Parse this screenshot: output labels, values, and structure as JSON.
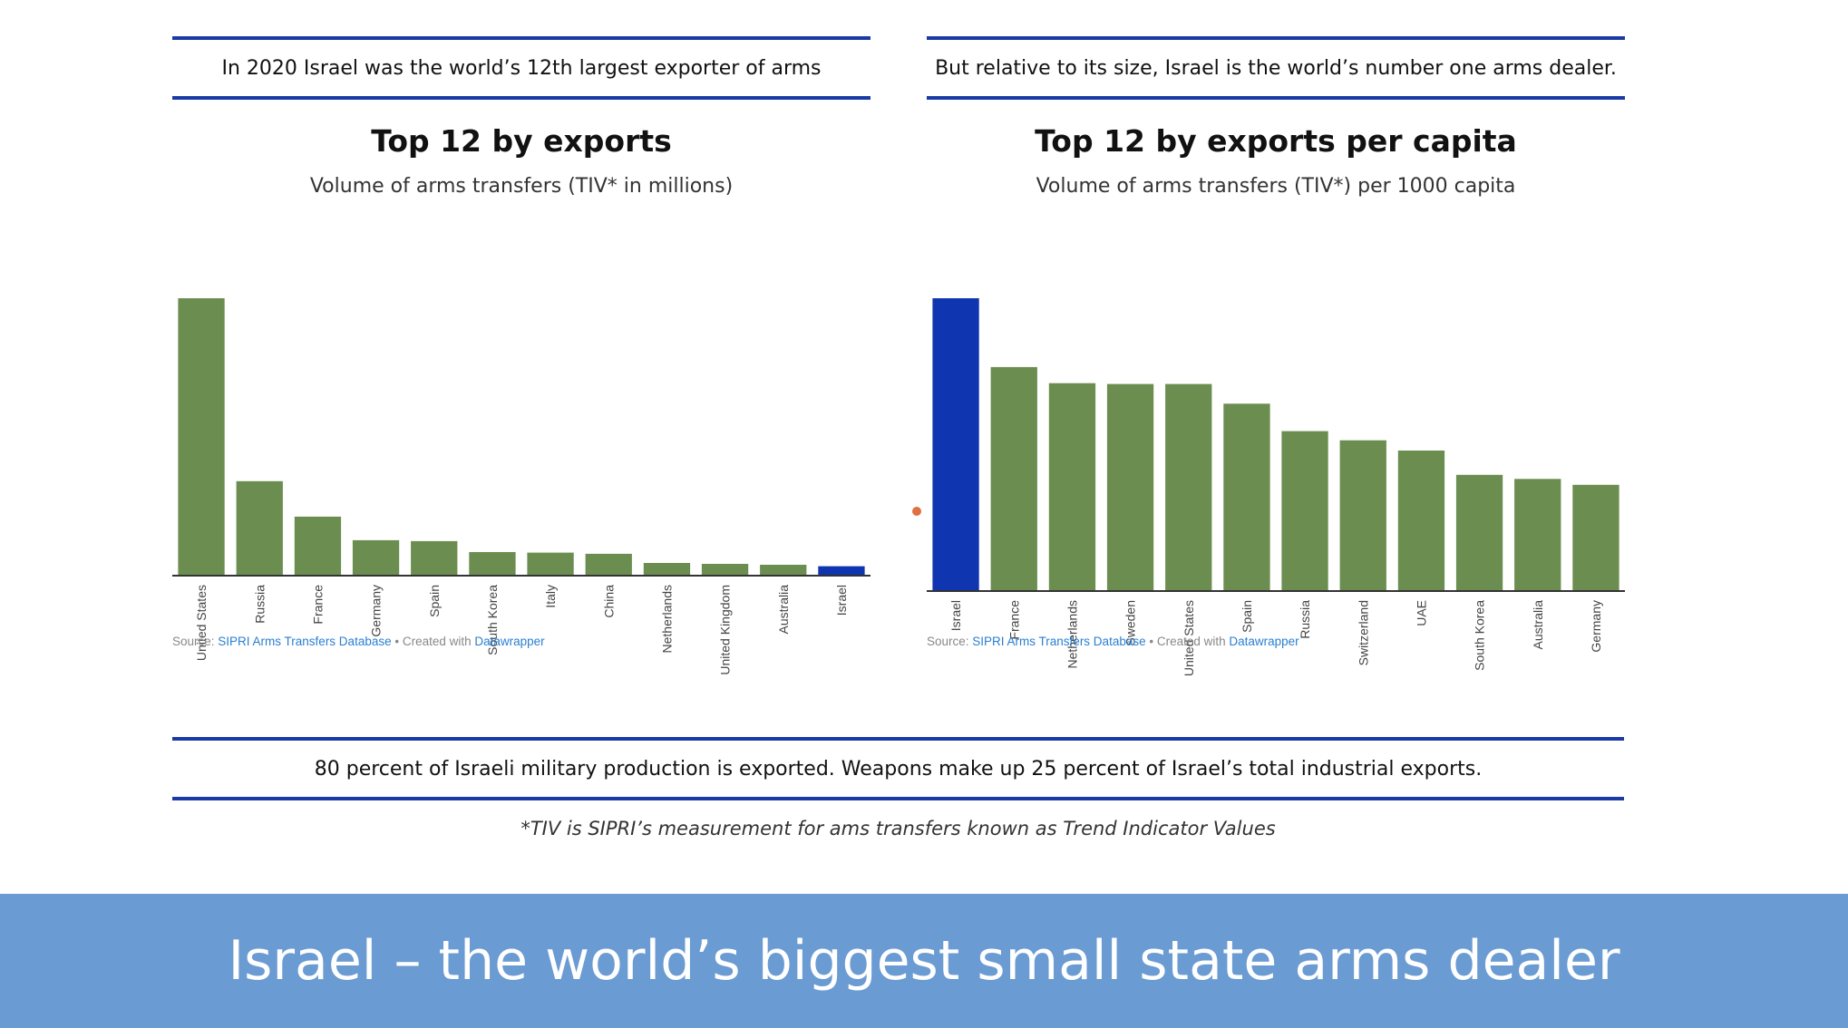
{
  "colors": {
    "accent_line": "#1a3aa6",
    "bar_green": "#6b8e50",
    "bar_highlight": "#1035b0",
    "banner_bg": "#6a9bd2",
    "link": "#2a7fd1"
  },
  "left_panel": {
    "headline": "In 2020 Israel was the world’s 12th largest exporter of arms",
    "source": {
      "prefix": "Source: ",
      "link1": "SIPRI Arms Transfers Database",
      "middle": " • Created with ",
      "link2": "Datawrapper"
    }
  },
  "right_panel": {
    "headline": "But relative to its size, Israel is the world’s number one arms dealer.",
    "source": {
      "prefix": "Source: ",
      "link1": "SIPRI Arms Transfers Database",
      "middle": " • Created with ",
      "link2": "Datawrapper"
    }
  },
  "chart_data": [
    {
      "type": "bar",
      "title": "Top 12 by exports",
      "subtitle": "Volume of arms transfers (TIV* in millions)",
      "categories": [
        "United States",
        "Russia",
        "France",
        "Germany",
        "Spain",
        "South Korea",
        "Italy",
        "China",
        "Netherlands",
        "United Kingdom",
        "Australia",
        "Israel"
      ],
      "values": [
        9400,
        3200,
        2000,
        1200,
        1170,
        800,
        780,
        740,
        430,
        400,
        370,
        320
      ],
      "highlight": "Israel",
      "ylim": [
        0,
        9400
      ]
    },
    {
      "type": "bar",
      "title": "Top 12 by exports per capita",
      "subtitle": "Volume of arms transfers (TIV*) per 1000 capita",
      "categories": [
        "Israel",
        "France",
        "Netherlands",
        "Sweden",
        "United States",
        "Spain",
        "Russia",
        "Switzerland",
        "UAE",
        "South Korea",
        "Australia",
        "Germany"
      ],
      "values": [
        100,
        76.5,
        71,
        70.7,
        70.7,
        64,
        54.6,
        51.5,
        48,
        39.7,
        38.3,
        36.3
      ],
      "highlight": "Israel",
      "ylim": [
        0,
        100
      ]
    }
  ],
  "footer": {
    "statement": "80 percent of Israeli military production is exported. Weapons make up 25 percent of Israel’s total industrial exports.",
    "footnote": "*TIV is SIPRI’s measurement for ams transfers known as Trend Indicator Values"
  },
  "banner": {
    "title": "Israel – the world’s biggest small state arms dealer"
  }
}
